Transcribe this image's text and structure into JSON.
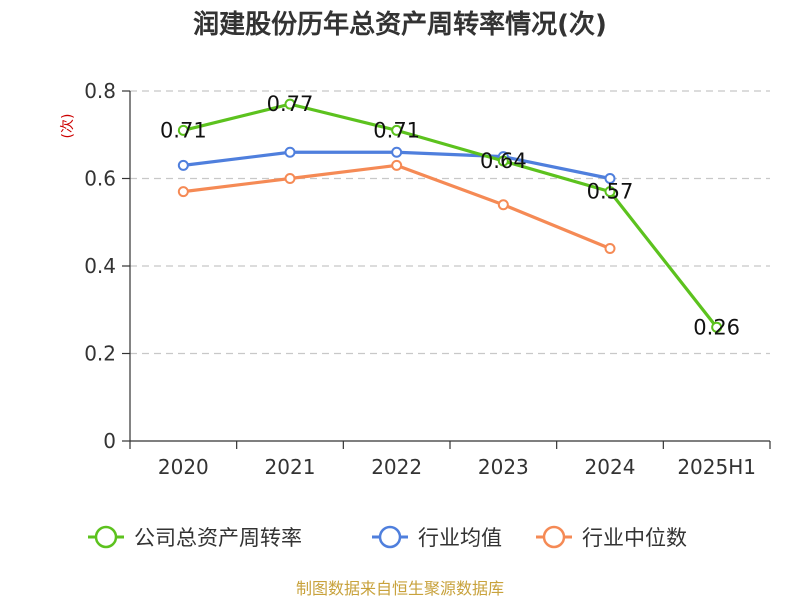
{
  "chart_data": {
    "type": "line",
    "title": "润建股份历年总资产周转率情况(次)",
    "ylabel": "(次)",
    "categories": [
      "2020",
      "2021",
      "2022",
      "2023",
      "2024",
      "2025H1"
    ],
    "y_ticks": [
      "0",
      "0.2",
      "0.4",
      "0.6",
      "0.8"
    ],
    "ylim": [
      0,
      0.8
    ],
    "grid": true,
    "legend_position": "bottom",
    "series": [
      {
        "name": "公司总资产周转率",
        "color": "#5cc21e",
        "values": [
          0.71,
          0.77,
          0.71,
          0.64,
          0.57,
          0.26
        ],
        "data_labels": [
          "0.71",
          "0.77",
          "0.71",
          "0.64",
          "0.57",
          "0.26"
        ]
      },
      {
        "name": "行业均值",
        "color": "#4f7fdd",
        "values": [
          0.63,
          0.66,
          0.66,
          0.65,
          0.6,
          null
        ]
      },
      {
        "name": "行业中位数",
        "color": "#f58a55",
        "values": [
          0.57,
          0.6,
          0.63,
          0.54,
          0.44,
          null
        ]
      }
    ],
    "source": "制图数据来自恒生聚源数据库"
  }
}
